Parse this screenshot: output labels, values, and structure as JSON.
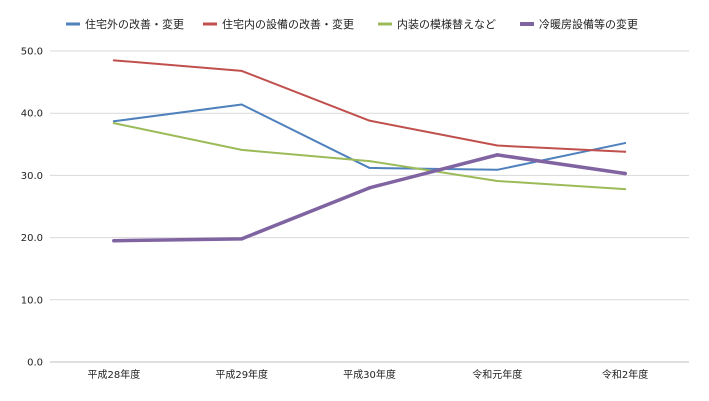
{
  "chart_data": {
    "type": "line",
    "title": "",
    "xlabel": "",
    "ylabel": "",
    "categories": [
      "平成28年度",
      "平成29年度",
      "平成30年度",
      "令和元年度",
      "令和2年度"
    ],
    "ylim": [
      0,
      50
    ],
    "yticks": [
      "0.0",
      "10.0",
      "20.0",
      "30.0",
      "40.0",
      "50.0"
    ],
    "grid": true,
    "legend_position": "top",
    "series": [
      {
        "name": "住宅外の改善・変更",
        "color": "#4f81bd",
        "values": [
          38.7,
          41.4,
          31.2,
          30.9,
          35.2
        ]
      },
      {
        "name": "住宅内の設備の改善・変更",
        "color": "#c0504d",
        "values": [
          48.5,
          46.8,
          38.8,
          34.8,
          33.8
        ]
      },
      {
        "name": "内装の模様替えなど",
        "color": "#9bbb59",
        "values": [
          38.4,
          34.1,
          32.3,
          29.1,
          27.8
        ]
      },
      {
        "name": "冷暖房設備等の変更",
        "color": "#8064a2",
        "values": [
          19.5,
          19.8,
          28.0,
          33.3,
          30.3
        ]
      }
    ]
  }
}
